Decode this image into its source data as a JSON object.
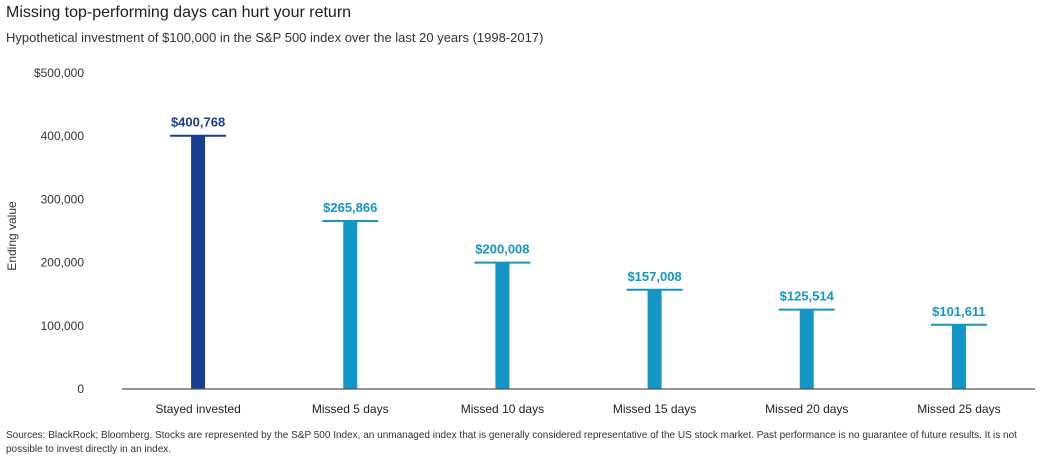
{
  "header": {
    "title": "Missing top-performing days can hurt your return",
    "subtitle": "Hypothetical investment of $100,000 in the S&P 500 index over the last 20 years (1998-2017)"
  },
  "chart_data": {
    "type": "bar",
    "title": "Missing top-performing days can hurt your return",
    "subtitle": "Hypothetical investment of $100,000 in the S&P 500 index over the last 20 years (1998-2017)",
    "xlabel": "",
    "ylabel": "Ending value",
    "ylim": [
      0,
      500000
    ],
    "yticks": [
      0,
      100000,
      200000,
      300000,
      400000,
      500000
    ],
    "ytick_labels": [
      "0",
      "100,000",
      "200,000",
      "300,000",
      "400,000",
      "$500,000"
    ],
    "categories": [
      "Stayed invested",
      "Missed 5 days",
      "Missed 10 days",
      "Missed 15 days",
      "Missed 20 days",
      "Missed 25 days"
    ],
    "values": [
      400768,
      265866,
      200008,
      157008,
      125514,
      101611
    ],
    "value_labels": [
      "$400,768",
      "$265,866",
      "$200,008",
      "$157,008",
      "$125,514",
      "$101,611"
    ],
    "colors": [
      "#1a3f8f",
      "#1496c4",
      "#1496c4",
      "#1496c4",
      "#1496c4",
      "#1496c4"
    ],
    "grid": false,
    "legend": "none"
  },
  "footnote": "Sources: BlackRock; Bloomberg. Stocks are represented by the S&P 500 Index, an unmanaged index that is generally considered representative of the US stock market. Past performance is no guarantee of future results. It is not possible to invest directly in an index."
}
